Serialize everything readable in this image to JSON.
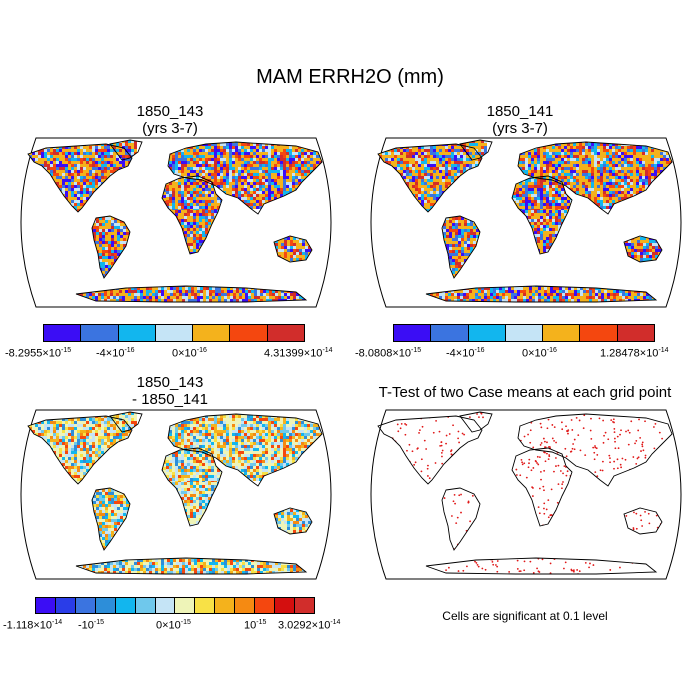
{
  "title": "MAM ERRH2O (mm)",
  "panels": {
    "top_left": {
      "title": "1850_143",
      "subtitle": "(yrs 3-7)"
    },
    "top_right": {
      "title": "1850_141",
      "subtitle": "(yrs 3-7)"
    },
    "bottom_left": {
      "title": "1850_143",
      "subtitle": "- 1850_141"
    },
    "bottom_right": {
      "title": "T-Test of two Case means at each grid point",
      "note": "Cells are significant at 0.1 level"
    }
  },
  "colorbars": {
    "top_left": {
      "colors": [
        "#3b0df5",
        "#3b74e0",
        "#12b6ee",
        "#c5e4f6",
        "#f4b21c",
        "#f4470f",
        "#d12d2b"
      ],
      "labels": [
        {
          "mant": "-8.2955",
          "exp": "-15"
        },
        {
          "mant": "-4",
          "exp": "-16"
        },
        {
          "mant": "0",
          "exp": "-16"
        },
        {
          "mant": "4.31399",
          "exp": "-14"
        }
      ]
    },
    "top_right": {
      "colors": [
        "#3b0df5",
        "#3b74e0",
        "#12b6ee",
        "#c5e4f6",
        "#f4b21c",
        "#f4470f",
        "#d12d2b"
      ],
      "labels": [
        {
          "mant": "-8.0808",
          "exp": "-15"
        },
        {
          "mant": "-4",
          "exp": "-16"
        },
        {
          "mant": "0",
          "exp": "-16"
        },
        {
          "mant": "1.28478",
          "exp": "-14"
        }
      ]
    },
    "bottom_left": {
      "colors": [
        "#3b0df5",
        "#2a3de8",
        "#3b74e0",
        "#2d8ed9",
        "#12b6ee",
        "#6fc8ec",
        "#c5e4f6",
        "#eef4b8",
        "#f8e146",
        "#f4b21c",
        "#f58a12",
        "#f4470f",
        "#d40f0f",
        "#d12d2b"
      ],
      "labels": [
        {
          "mant": "-1.118",
          "exp": "-14"
        },
        {
          "mant": "-10",
          "exp": "-15"
        },
        {
          "mant": "0",
          "exp": "-15"
        },
        {
          "mant": "10",
          "exp": "-15"
        },
        {
          "mant": "3.0292",
          "exp": "-14"
        }
      ]
    }
  },
  "significance_color": "#e01818"
}
